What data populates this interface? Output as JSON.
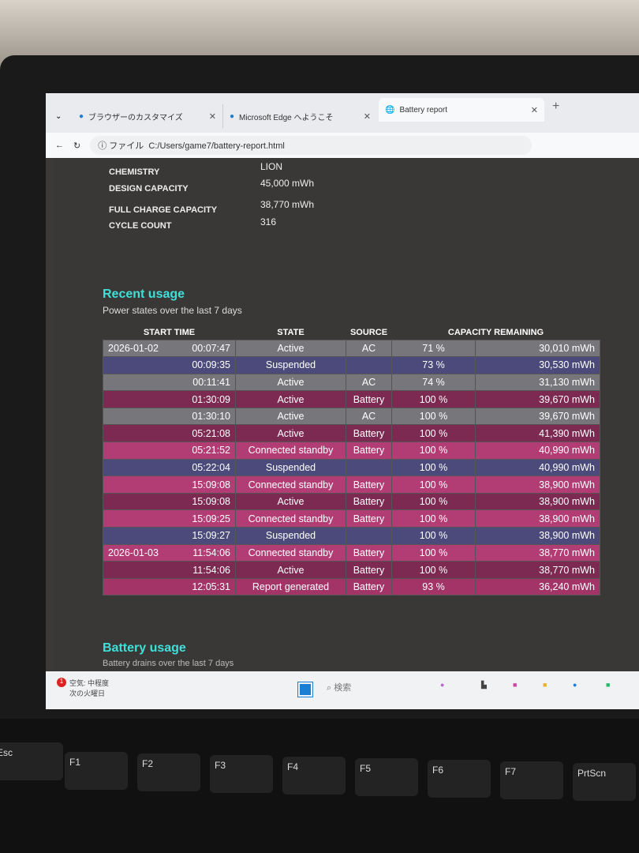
{
  "browser": {
    "tabs": [
      {
        "label": "ブラウザーのカスタマイズ",
        "icon": "edge-icon"
      },
      {
        "label": "Microsoft Edge へようこそ",
        "icon": "edge-icon"
      },
      {
        "label": "Battery report",
        "icon": "globe-icon",
        "active": true
      }
    ],
    "address_prefix": "ファイル",
    "url": "C:/Users/game7/battery-report.html"
  },
  "info": [
    {
      "label": "CHEMISTRY",
      "value": "LION"
    },
    {
      "label": "DESIGN CAPACITY",
      "value": "45,000 mWh"
    },
    {
      "label": "FULL CHARGE CAPACITY",
      "value": "38,770 mWh"
    },
    {
      "label": "CYCLE COUNT",
      "value": "316"
    }
  ],
  "recent": {
    "title": "Recent usage",
    "subtitle": "Power states over the last 7 days",
    "headers": [
      "START TIME",
      "STATE",
      "SOURCE",
      "CAPACITY REMAINING"
    ],
    "rows": [
      {
        "date": "2026-01-02",
        "time": "00:07:47",
        "state": "Active",
        "source": "AC",
        "pct": "71 %",
        "mwh": "30,010 mWh",
        "kind": "active-ac"
      },
      {
        "date": "",
        "time": "00:09:35",
        "state": "Suspended",
        "source": "",
        "pct": "73 %",
        "mwh": "30,530 mWh",
        "kind": "susp"
      },
      {
        "date": "",
        "time": "00:11:41",
        "state": "Active",
        "source": "AC",
        "pct": "74 %",
        "mwh": "31,130 mWh",
        "kind": "active-ac"
      },
      {
        "date": "",
        "time": "01:30:09",
        "state": "Active",
        "source": "Battery",
        "pct": "100 %",
        "mwh": "39,670 mWh",
        "kind": "active-bat"
      },
      {
        "date": "",
        "time": "01:30:10",
        "state": "Active",
        "source": "AC",
        "pct": "100 %",
        "mwh": "39,670 mWh",
        "kind": "active-ac"
      },
      {
        "date": "",
        "time": "05:21:08",
        "state": "Active",
        "source": "Battery",
        "pct": "100 %",
        "mwh": "41,390 mWh",
        "kind": "active-bat"
      },
      {
        "date": "",
        "time": "05:21:52",
        "state": "Connected standby",
        "source": "Battery",
        "pct": "100 %",
        "mwh": "40,990 mWh",
        "kind": "cs"
      },
      {
        "date": "",
        "time": "05:22:04",
        "state": "Suspended",
        "source": "",
        "pct": "100 %",
        "mwh": "40,990 mWh",
        "kind": "susp"
      },
      {
        "date": "",
        "time": "15:09:08",
        "state": "Connected standby",
        "source": "Battery",
        "pct": "100 %",
        "mwh": "38,900 mWh",
        "kind": "cs"
      },
      {
        "date": "",
        "time": "15:09:08",
        "state": "Active",
        "source": "Battery",
        "pct": "100 %",
        "mwh": "38,900 mWh",
        "kind": "active-bat"
      },
      {
        "date": "",
        "time": "15:09:25",
        "state": "Connected standby",
        "source": "Battery",
        "pct": "100 %",
        "mwh": "38,900 mWh",
        "kind": "cs"
      },
      {
        "date": "",
        "time": "15:09:27",
        "state": "Suspended",
        "source": "",
        "pct": "100 %",
        "mwh": "38,900 mWh",
        "kind": "susp"
      },
      {
        "date": "2026-01-03",
        "time": "11:54:06",
        "state": "Connected standby",
        "source": "Battery",
        "pct": "100 %",
        "mwh": "38,770 mWh",
        "kind": "cs"
      },
      {
        "date": "",
        "time": "11:54:06",
        "state": "Active",
        "source": "Battery",
        "pct": "100 %",
        "mwh": "38,770 mWh",
        "kind": "active-bat"
      },
      {
        "date": "",
        "time": "12:05:31",
        "state": "Report generated",
        "source": "Battery",
        "pct": "93 %",
        "mwh": "36,240 mWh",
        "kind": "rep"
      }
    ],
    "colors": {
      "active-ac": "#77767a",
      "susp": "#4b4a7a",
      "active-bat": "#7c2a52",
      "cs": "#b13d74",
      "title": "#3ee0d8"
    }
  },
  "battery_usage": {
    "title": "Battery usage",
    "subtitle": "Battery drains over the last 7 days"
  },
  "taskbar": {
    "weather_badge": "1",
    "weather_line1": "空気: 中程度",
    "weather_line2": "次の火曜日",
    "search_placeholder": "検索"
  },
  "keyboard": [
    "Esc",
    "F1",
    "F2",
    "F3",
    "F4",
    "F5",
    "F6",
    "F7",
    "PrtScn"
  ]
}
